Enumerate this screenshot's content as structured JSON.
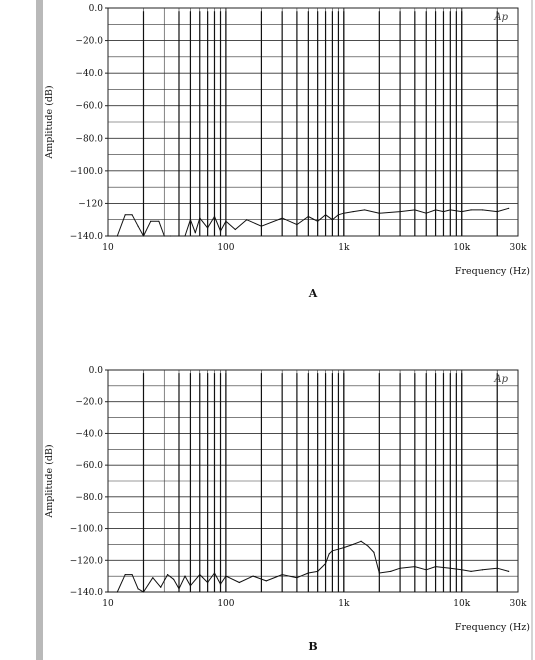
{
  "chart_data": [
    {
      "type": "line",
      "panel_label": "A",
      "ylabel": "Amplitude (dB)",
      "xlabel": "Frequency (Hz)",
      "x_scale": "log",
      "xlim": [
        10,
        30000
      ],
      "ylim": [
        -140,
        0
      ],
      "grid": true,
      "watermark": "Ap",
      "x_ticks": [
        {
          "value": 10,
          "label": "10"
        },
        {
          "value": 100,
          "label": "100"
        },
        {
          "value": 1000,
          "label": "1k"
        },
        {
          "value": 10000,
          "label": "10k"
        },
        {
          "value": 30000,
          "label": "30k"
        }
      ],
      "y_ticks": [
        {
          "value": 0,
          "label": "0.0"
        },
        {
          "value": -20,
          "label": "−20.0"
        },
        {
          "value": -40,
          "label": "−40.0"
        },
        {
          "value": -60,
          "label": "−60.0"
        },
        {
          "value": -80,
          "label": "−80.0"
        },
        {
          "value": -100,
          "label": "−100.0"
        },
        {
          "value": -120,
          "label": "−120"
        },
        {
          "value": -140,
          "label": "−140.0"
        }
      ],
      "harmonic_spikes_hz": [
        20,
        40,
        50,
        60,
        70,
        80,
        90,
        100,
        200,
        300,
        400,
        500,
        600,
        700,
        800,
        900,
        1000,
        2000,
        3000,
        4000,
        5000,
        6000,
        7000,
        8000,
        9000,
        10000,
        20000
      ],
      "series": [
        {
          "x": [
            10,
            12,
            14,
            16,
            18,
            20,
            23,
            27,
            30,
            34,
            40,
            45,
            50,
            55,
            60,
            70,
            80,
            90,
            100,
            120,
            150,
            200,
            300,
            400,
            500,
            600,
            700,
            800,
            900,
            1000,
            1200,
            1500,
            2000,
            3000,
            4000,
            5000,
            6000,
            7000,
            8000,
            10000,
            12000,
            15000,
            20000,
            25000
          ],
          "y": [
            -140,
            -140,
            -127,
            -127,
            -134,
            -140,
            -131,
            -131,
            -140,
            -140,
            -140,
            -140,
            -130,
            -138,
            -129,
            -135,
            -128,
            -137,
            -131,
            -136,
            -130,
            -134,
            -129,
            -133,
            -128,
            -131,
            -127,
            -130,
            -127,
            -126,
            -125,
            -124,
            -126,
            -125,
            -124,
            -126,
            -124,
            -125,
            -124,
            -125,
            -124,
            -124,
            -125,
            -123
          ]
        }
      ]
    },
    {
      "type": "line",
      "panel_label": "B",
      "ylabel": "Amplitude (dB)",
      "xlabel": "Frequency (Hz)",
      "x_scale": "log",
      "xlim": [
        10,
        30000
      ],
      "ylim": [
        -140,
        0
      ],
      "grid": true,
      "watermark": "Ap",
      "x_ticks": [
        {
          "value": 10,
          "label": "10"
        },
        {
          "value": 100,
          "label": "100"
        },
        {
          "value": 1000,
          "label": "1k"
        },
        {
          "value": 10000,
          "label": "10k"
        },
        {
          "value": 30000,
          "label": "30k"
        }
      ],
      "y_ticks": [
        {
          "value": 0,
          "label": "0.0"
        },
        {
          "value": -20,
          "label": "−20.0"
        },
        {
          "value": -40,
          "label": "−40.0"
        },
        {
          "value": -60,
          "label": "−60.0"
        },
        {
          "value": -80,
          "label": "−80.0"
        },
        {
          "value": -100,
          "label": "−100.0"
        },
        {
          "value": -120,
          "label": "−120.0"
        },
        {
          "value": -140,
          "label": "−140.0"
        }
      ],
      "harmonic_spikes_hz": [
        20,
        40,
        50,
        60,
        70,
        80,
        90,
        100,
        200,
        300,
        400,
        500,
        600,
        700,
        800,
        900,
        1000,
        2000,
        3000,
        4000,
        5000,
        6000,
        7000,
        8000,
        9000,
        10000,
        20000
      ],
      "series": [
        {
          "x": [
            10,
            12,
            14,
            16,
            18,
            20,
            24,
            28,
            32,
            36,
            40,
            45,
            50,
            60,
            70,
            80,
            90,
            100,
            130,
            170,
            220,
            300,
            400,
            500,
            600,
            700,
            750,
            800,
            900,
            1000,
            1200,
            1400,
            1600,
            1800,
            2000,
            2500,
            3000,
            4000,
            5000,
            6000,
            8000,
            10000,
            12000,
            15000,
            20000,
            25000
          ],
          "y": [
            -140,
            -140,
            -129,
            -129,
            -138,
            -140,
            -131,
            -137,
            -129,
            -132,
            -138,
            -130,
            -136,
            -129,
            -134,
            -128,
            -135,
            -130,
            -134,
            -130,
            -133,
            -129,
            -131,
            -128,
            -127,
            -122,
            -116,
            -114,
            -113,
            -112,
            -110,
            -108,
            -111,
            -115,
            -128,
            -127,
            -125,
            -124,
            -126,
            -124,
            -125,
            -126,
            -127,
            -126,
            -125,
            -127
          ]
        }
      ]
    }
  ]
}
